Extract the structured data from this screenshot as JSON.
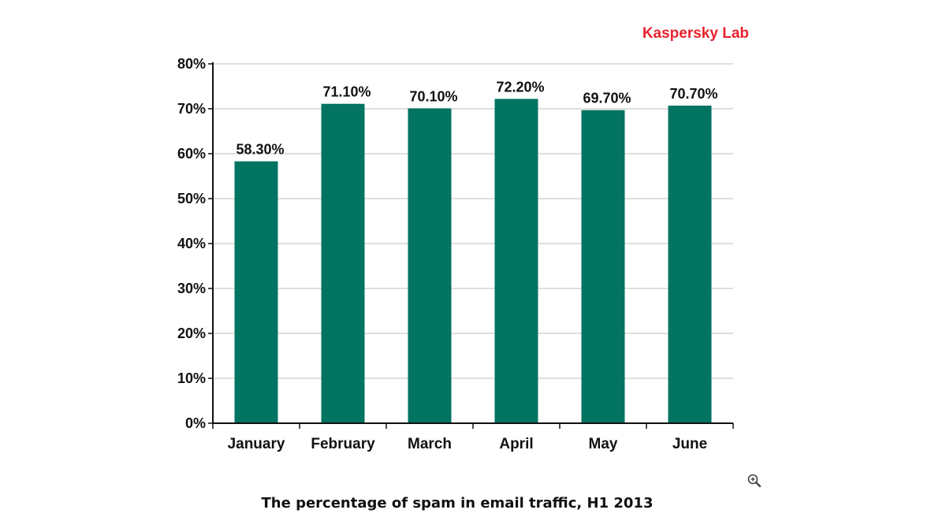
{
  "brand": "Kaspersky Lab",
  "caption": "The percentage of spam in email traffic, H1 2013",
  "zoom_icon": "magnifier-plus-icon",
  "colors": {
    "bar": "#037362",
    "brand": "#e8232d",
    "grid": "#bfbfbf",
    "axis": "#111111"
  },
  "chart_data": {
    "type": "bar",
    "categories": [
      "January",
      "February",
      "March",
      "April",
      "May",
      "June"
    ],
    "values": [
      58.3,
      71.1,
      70.1,
      72.2,
      69.7,
      70.7
    ],
    "data_labels": [
      "58.30%",
      "71.10%",
      "70.10%",
      "72.20%",
      "69.70%",
      "70.70%"
    ],
    "y_ticks": [
      0,
      10,
      20,
      30,
      40,
      50,
      60,
      70,
      80
    ],
    "y_tick_labels": [
      "0%",
      "10%",
      "20%",
      "30%",
      "40%",
      "50%",
      "60%",
      "70%",
      "80%"
    ],
    "ylim": [
      0,
      80
    ],
    "grid": true,
    "legend": "none"
  }
}
